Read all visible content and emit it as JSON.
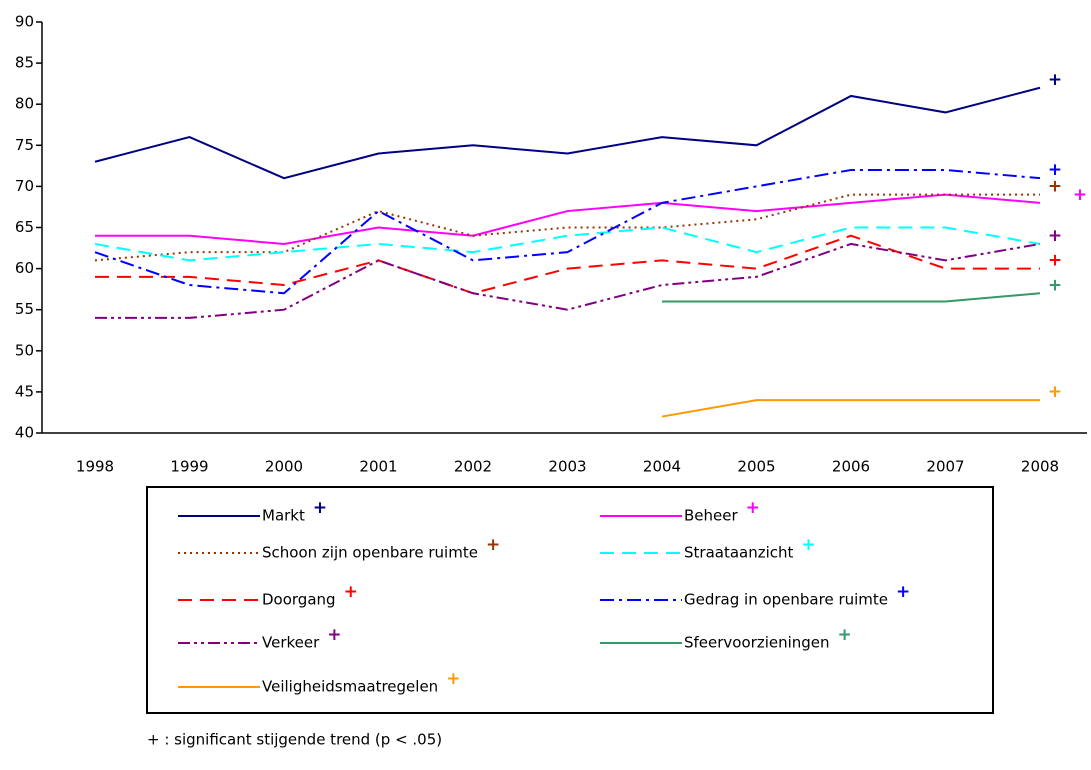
{
  "chart_data": {
    "type": "line",
    "categories": [
      "1998",
      "1999",
      "2000",
      "2001",
      "2002",
      "2003",
      "2004",
      "2005",
      "2006",
      "2007",
      "2008"
    ],
    "ylim": [
      40,
      90
    ],
    "yticks": [
      40,
      45,
      50,
      55,
      60,
      65,
      70,
      75,
      80,
      85,
      90
    ],
    "significance_marker": "+",
    "note": "+ : significant stijgende trend (p < .05)",
    "series": [
      {
        "name": "Markt",
        "color": "#000080",
        "dash": "solid",
        "values": [
          73,
          76,
          71,
          74,
          75,
          74,
          76,
          75,
          81,
          79,
          82
        ]
      },
      {
        "name": "Beheer",
        "color": "#ff00ff",
        "dash": "solid",
        "values": [
          64,
          64,
          63,
          65,
          64,
          67,
          68,
          67,
          68,
          69,
          68
        ]
      },
      {
        "name": "Schoon zijn openbare ruimte",
        "color": "#993300",
        "dash": "dotted",
        "values": [
          61,
          62,
          62,
          67,
          64,
          65,
          65,
          66,
          69,
          69,
          69
        ]
      },
      {
        "name": "Straataanzicht",
        "color": "#00ffff",
        "dash": "dashed",
        "values": [
          63,
          61,
          62,
          63,
          62,
          64,
          65,
          62,
          65,
          65,
          63
        ]
      },
      {
        "name": "Doorgang",
        "color": "#ff0000",
        "dash": "dashed",
        "values": [
          59,
          59,
          58,
          61,
          57,
          60,
          61,
          60,
          64,
          60,
          60
        ]
      },
      {
        "name": "Gedrag in openbare ruimte",
        "color": "#0000ff",
        "dash": "dashdot",
        "values": [
          62,
          58,
          57,
          67,
          61,
          62,
          68,
          70,
          72,
          72,
          71
        ]
      },
      {
        "name": "Verkeer",
        "color": "#800080",
        "dash": "dashdotdot",
        "values": [
          54,
          54,
          55,
          61,
          57,
          55,
          58,
          59,
          63,
          61,
          63
        ]
      },
      {
        "name": "Sfeervoorzieningen",
        "color": "#339966",
        "dash": "solid",
        "values": [
          null,
          null,
          null,
          null,
          null,
          null,
          56,
          56,
          56,
          56,
          57
        ]
      },
      {
        "name": "Veiligheidsmaatregelen",
        "color": "#ff9900",
        "dash": "solid",
        "values": [
          null,
          null,
          null,
          null,
          null,
          null,
          42,
          44,
          44,
          44,
          44
        ]
      }
    ]
  }
}
